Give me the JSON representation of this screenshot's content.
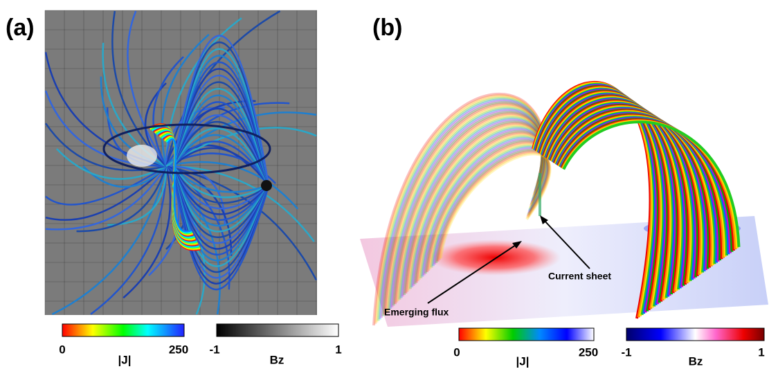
{
  "panels": [
    {
      "label": "(a)",
      "colorbars": [
        {
          "title": "|J|",
          "min": 0,
          "max": 250
        },
        {
          "title": "Bz",
          "min": -1,
          "max": 1
        }
      ]
    },
    {
      "label": "(b)",
      "annotations": [
        "Current sheet",
        "Emerging flux"
      ],
      "colorbars": [
        {
          "title": "|J|",
          "min": 0,
          "max": 250
        },
        {
          "title": "Bz",
          "min": -1,
          "max": 1
        }
      ]
    }
  ]
}
